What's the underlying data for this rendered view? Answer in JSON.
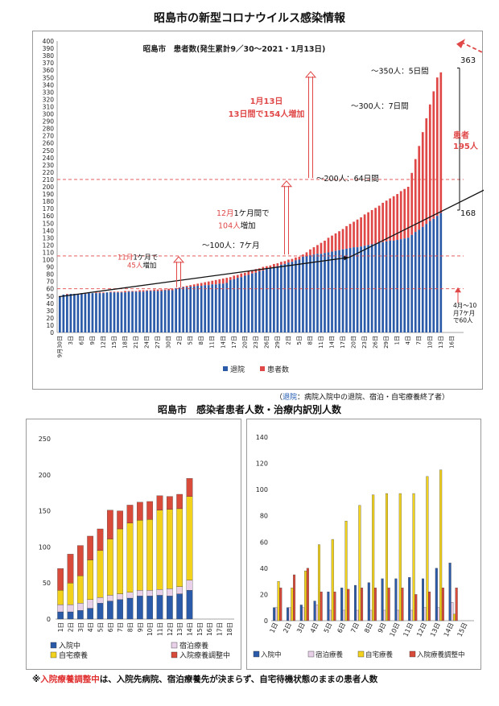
{
  "page": {
    "title": "昭島市の新型コロナウイルス感染情報",
    "note_open": "（",
    "note_term": "退院",
    "note_rest": "：病院入院中の退院、宿泊・自宅療養終了者）",
    "title2": "昭島市　感染者患者人数・治療内訳別人数",
    "footnote_mark": "※",
    "footnote_term": "入院療養調整中",
    "footnote_rest": "は、入院先病院、宿泊療養先が決まらず、自宅待機状態のままの患者人数"
  },
  "chart_data": [
    {
      "type": "bar",
      "title": "昭島市　患者数(発生累計9／30～2021・1月13日)",
      "ylim": [
        0,
        400
      ],
      "yticks": [
        "0",
        "10",
        "20",
        "30",
        "40",
        "50",
        "60",
        "70",
        "80",
        "90",
        "100",
        "110",
        "120",
        "130",
        "140",
        "150",
        "160",
        "170",
        "180",
        "190",
        "200",
        "210",
        "220",
        "230",
        "240",
        "250",
        "260",
        "270",
        "280",
        "290",
        "300",
        "310",
        "320",
        "330",
        "340",
        "350",
        "360",
        "370",
        "380",
        "390",
        "400"
      ],
      "xticks": [
        "9月30日",
        "3日",
        "6日",
        "9日",
        "12日",
        "15日",
        "18日",
        "21日",
        "24日",
        "27日",
        "30日",
        "2日",
        "5日",
        "8日",
        "11日",
        "14日",
        "17日",
        "20日",
        "23日",
        "26日",
        "29日",
        "2日",
        "5日",
        "8日",
        "11日",
        "14日",
        "17日",
        "20日",
        "23日",
        "26日",
        "29日",
        "1日",
        "4日",
        "7日",
        "10日",
        "13日",
        "16日"
      ],
      "stacked": true,
      "legend": "bottom-center",
      "grid": false,
      "series": [
        {
          "name": "退院",
          "color": "#2b5aa8",
          "segments": [
            [
              48,
              50,
              1
            ],
            [
              52,
              58,
              31
            ],
            [
              60,
              68,
              15
            ],
            [
              70,
              100,
              20
            ],
            [
              103,
              130,
              30
            ],
            [
              130,
              160,
              8
            ],
            [
              160,
              168,
              1
            ]
          ]
        },
        {
          "name": "患者数",
          "color": "#e04848",
          "segments": [
            [
              49,
              51,
              1
            ],
            [
              52,
              60,
              31
            ],
            [
              60,
              75,
              15
            ],
            [
              75,
              104,
              20
            ],
            [
              104,
              200,
              30
            ],
            [
              200,
              350,
              8
            ],
            [
              350,
              363,
              1
            ]
          ]
        }
      ],
      "reference_lines": [
        60,
        105,
        210
      ],
      "annotations": [
        {
          "text_pre": "11月",
          "text_mid": "1ケ月で",
          "text_num": "45人",
          "text_post": "増加"
        },
        {
          "text_pre": "12月",
          "text_mid": "1ケ月間で",
          "text_num": "104人",
          "text_post": "増加"
        },
        {
          "line1": "1月13日",
          "line2": "13日間で154人増加"
        },
        {
          "text": "～100人：7ケ月"
        },
        {
          "text": "～200人：64日間"
        },
        {
          "text": "～300人：7日間"
        },
        {
          "text": "～350人：5日間"
        },
        {
          "text": "363"
        },
        {
          "line1": "患者",
          "line2": "195人"
        },
        {
          "text": "168"
        },
        {
          "line1": "4月～10",
          "line2": "月7ケ月",
          "line3": "で60人"
        }
      ]
    },
    {
      "type": "bar",
      "stacked": true,
      "ylim": [
        0,
        250
      ],
      "yticks": [
        "0",
        "50",
        "100",
        "150",
        "200",
        "250"
      ],
      "categories": [
        "1日",
        "2日",
        "3日",
        "4日",
        "5日",
        "6日",
        "7日",
        "8日",
        "9日",
        "10日",
        "11日",
        "12日",
        "13日",
        "14日",
        "15日",
        "16日",
        "17日",
        "18日"
      ],
      "series": [
        {
          "name": "入院中",
          "color": "#2b5aa8",
          "values": [
            10,
            10,
            12,
            15,
            22,
            25,
            27,
            29,
            32,
            32,
            33,
            32,
            35,
            40,
            null,
            null,
            null,
            null
          ]
        },
        {
          "name": "宿泊療養",
          "color": "#e8d0e8",
          "values": [
            10,
            10,
            10,
            12,
            8,
            8,
            8,
            8,
            8,
            8,
            8,
            10,
            10,
            14,
            null,
            null,
            null,
            null
          ]
        },
        {
          "name": "自宅療養",
          "color": "#f2d21c",
          "values": [
            20,
            30,
            38,
            55,
            65,
            78,
            90,
            96,
            97,
            98,
            110,
            110,
            108,
            116,
            null,
            null,
            null,
            null
          ]
        },
        {
          "name": "入院療養調整中",
          "color": "#d84a3a",
          "values": [
            30,
            40,
            42,
            33,
            30,
            40,
            25,
            25,
            25,
            25,
            20,
            18,
            20,
            25,
            null,
            null,
            null,
            null
          ]
        }
      ],
      "legend": "bottom"
    },
    {
      "type": "bar",
      "stacked": false,
      "ylim": [
        0,
        140
      ],
      "yticks": [
        "0",
        "20",
        "40",
        "60",
        "80",
        "100",
        "120",
        "140"
      ],
      "categories": [
        "1日",
        "2日",
        "3日",
        "4日",
        "5日",
        "6日",
        "7日",
        "8日",
        "9日",
        "10日",
        "11日",
        "12日",
        "13日",
        "14日",
        "15日"
      ],
      "series": [
        {
          "name": "入院中",
          "color": "#2b5aa8",
          "values": [
            10,
            10,
            12,
            15,
            22,
            25,
            27,
            29,
            32,
            32,
            33,
            32,
            40,
            44,
            null
          ]
        },
        {
          "name": "宿泊療養",
          "color": "#e8d0e8",
          "values": [
            10,
            10,
            10,
            12,
            8,
            8,
            8,
            8,
            8,
            8,
            8,
            10,
            10,
            14,
            null
          ]
        },
        {
          "name": "自宅療養",
          "color": "#f2d21c",
          "values": [
            30,
            25,
            38,
            58,
            62,
            76,
            88,
            96,
            97,
            97,
            97,
            110,
            115,
            5,
            null
          ]
        },
        {
          "name": "入院療養調整中",
          "color": "#d84a3a",
          "values": [
            25,
            35,
            40,
            22,
            22,
            24,
            25,
            25,
            25,
            25,
            20,
            22,
            25,
            25,
            null
          ]
        }
      ],
      "legend": "bottom"
    }
  ]
}
